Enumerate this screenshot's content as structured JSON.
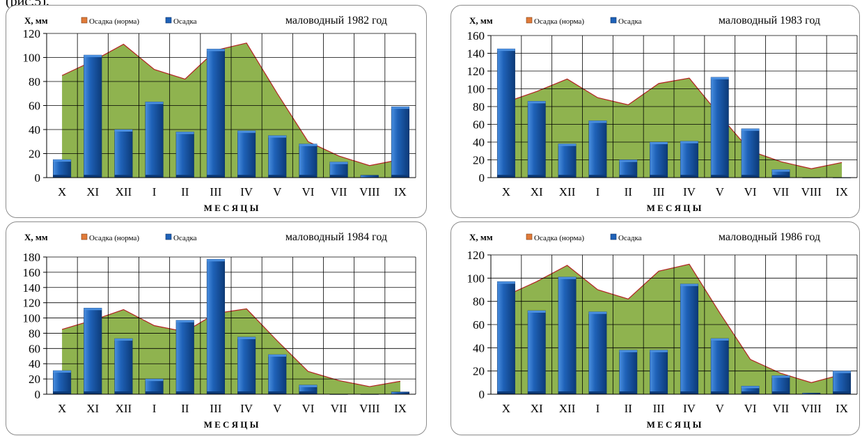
{
  "page_fragment": "(рис.5).",
  "colors": {
    "area_fill": "#8fb34f",
    "area_line": "#b22222",
    "bar_main": "#1f62b8",
    "bar_light": "#4a8fe0",
    "bar_dark": "#0c3a78",
    "grid": "#000000"
  },
  "chart_data": [
    {
      "type": "bar",
      "title": "маловодный 1982 год",
      "ylabel": "Х, мм",
      "xlabel": "М Е С Я Ц Ы",
      "categories": [
        "X",
        "XI",
        "XII",
        "I",
        "II",
        "III",
        "IV",
        "V",
        "VI",
        "VII",
        "VIII",
        "IX"
      ],
      "ylim": [
        0,
        120
      ],
      "yticks": [
        "0",
        "20",
        "40",
        "60",
        "80",
        "100",
        "120"
      ],
      "legend_position": "top-left",
      "grid": true,
      "series": [
        {
          "name": "Осадка (норма)",
          "type": "area",
          "values": [
            85,
            97,
            111,
            90,
            82,
            106,
            112,
            70,
            30,
            18,
            10,
            15
          ]
        },
        {
          "name": "Осадка",
          "type": "bar",
          "values": [
            15,
            102,
            40,
            63,
            38,
            107,
            39,
            35,
            28,
            13,
            2,
            59
          ]
        }
      ]
    },
    {
      "type": "bar",
      "title": "маловодный 1983 год",
      "ylabel": "Х, мм",
      "xlabel": "М Е С Я Ц Ы",
      "categories": [
        "X",
        "XI",
        "XII",
        "I",
        "II",
        "III",
        "IV",
        "V",
        "VI",
        "VII",
        "VIII",
        "IX"
      ],
      "ylim": [
        0,
        160
      ],
      "yticks": [
        "0",
        "20",
        "40",
        "60",
        "80",
        "100",
        "120",
        "140",
        "160"
      ],
      "legend_position": "top-left",
      "grid": true,
      "series": [
        {
          "name": "Осадка (норма)",
          "type": "area",
          "values": [
            85,
            97,
            111,
            90,
            82,
            106,
            112,
            70,
            30,
            18,
            10,
            17
          ]
        },
        {
          "name": "Осадка",
          "type": "bar",
          "values": [
            145,
            86,
            38,
            64,
            20,
            40,
            41,
            113,
            55,
            9,
            0,
            0
          ]
        }
      ]
    },
    {
      "type": "bar",
      "title": "маловодный 1984 год",
      "ylabel": "Х, мм",
      "xlabel": "М Е С Я Ц Ы",
      "categories": [
        "X",
        "XI",
        "XII",
        "I",
        "II",
        "III",
        "IV",
        "V",
        "VI",
        "VII",
        "VIII",
        "IX"
      ],
      "ylim": [
        0,
        180
      ],
      "yticks": [
        "0",
        "20",
        "40",
        "60",
        "80",
        "100",
        "120",
        "140",
        "160",
        "180"
      ],
      "legend_position": "top-left",
      "grid": true,
      "series": [
        {
          "name": "Осадка (норма)",
          "type": "area",
          "values": [
            85,
            97,
            111,
            90,
            82,
            106,
            112,
            70,
            30,
            18,
            10,
            17
          ]
        },
        {
          "name": "Осадка",
          "type": "bar",
          "values": [
            31,
            113,
            73,
            20,
            97,
            177,
            75,
            52,
            12,
            0,
            0,
            3
          ]
        }
      ]
    },
    {
      "type": "bar",
      "title": "маловодный 1986 год",
      "ylabel": "Х, мм",
      "xlabel": "М Е С Я Ц Ы",
      "categories": [
        "X",
        "XI",
        "XII",
        "I",
        "II",
        "III",
        "IV",
        "V",
        "VI",
        "VII",
        "VIII",
        "IX"
      ],
      "ylim": [
        0,
        120
      ],
      "yticks": [
        "0",
        "20",
        "40",
        "60",
        "80",
        "100",
        "120"
      ],
      "legend_position": "top-left",
      "grid": true,
      "series": [
        {
          "name": "Осадка (норма)",
          "type": "area",
          "values": [
            85,
            97,
            111,
            90,
            82,
            106,
            112,
            70,
            30,
            18,
            10,
            17
          ]
        },
        {
          "name": "Осадка",
          "type": "bar",
          "values": [
            97,
            72,
            101,
            71,
            38,
            38,
            95,
            48,
            7,
            16,
            1,
            20
          ]
        }
      ]
    }
  ]
}
